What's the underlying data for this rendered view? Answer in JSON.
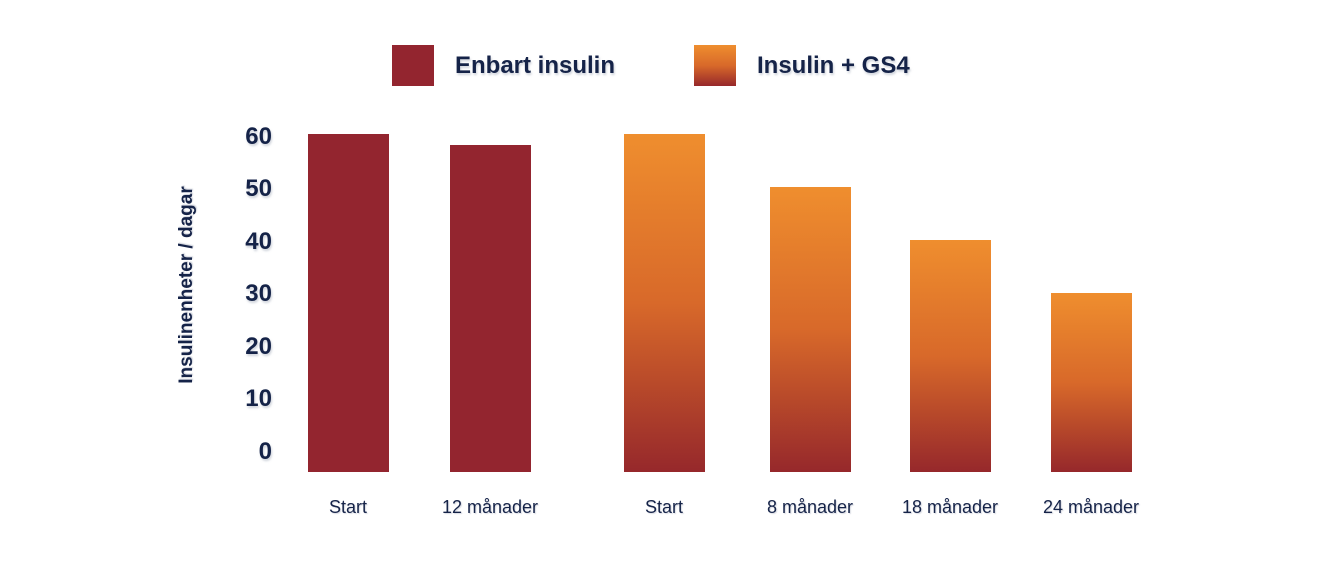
{
  "colors": {
    "background": "#FFFFFF",
    "text_navy": "#152348",
    "series_red": "#93252F",
    "series_orange_top": "#EF8E2E",
    "series_orange_mid": "#D8692A",
    "series_orange_bottom": "#96282B"
  },
  "legend": [
    {
      "label": "Enbart insulin",
      "swatch_style": "solid-red"
    },
    {
      "label": "Insulin + GS4",
      "swatch_style": "gradient-orange"
    }
  ],
  "chart_data": {
    "type": "bar",
    "title": "",
    "xlabel": "",
    "ylabel": "Insulinenheter / dagar",
    "ylim": [
      0,
      60
    ],
    "yticks": [
      60,
      50,
      40,
      30,
      20,
      10,
      0
    ],
    "grid": false,
    "legend_position": "top",
    "bars": [
      {
        "series": "Enbart insulin",
        "category": "Start",
        "value": 60
      },
      {
        "series": "Enbart insulin",
        "category": "12 månader",
        "value": 58
      },
      {
        "series": "Insulin + GS4",
        "category": "Start",
        "value": 60
      },
      {
        "series": "Insulin + GS4",
        "category": "8 månader",
        "value": 50
      },
      {
        "series": "Insulin + GS4",
        "category": "18 månader",
        "value": 40
      },
      {
        "series": "Insulin + GS4",
        "category": "24 månader",
        "value": 30
      }
    ]
  }
}
